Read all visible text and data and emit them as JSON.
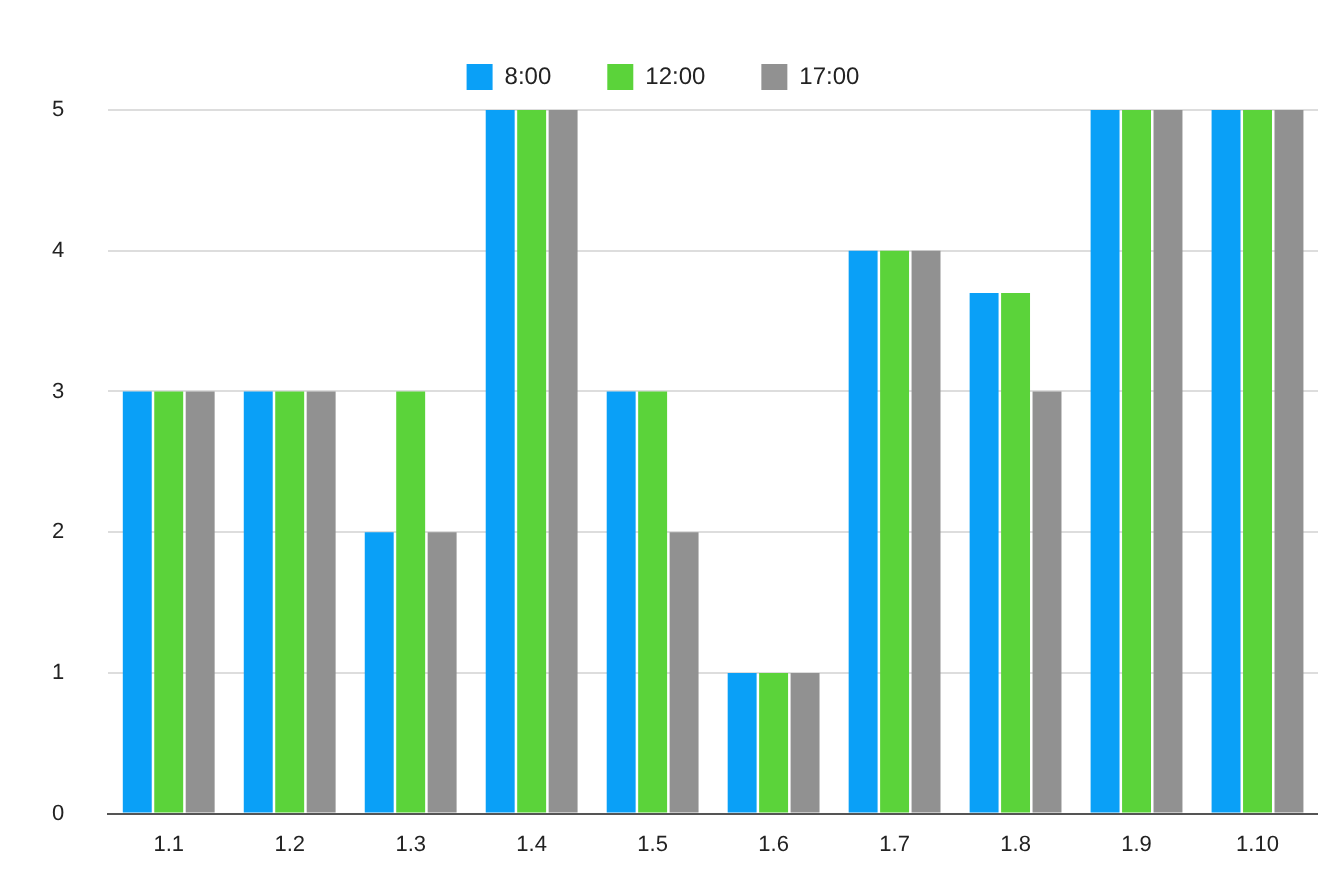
{
  "chart_data": {
    "type": "bar",
    "categories": [
      "1.1",
      "1.2",
      "1.3",
      "1.4",
      "1.5",
      "1.6",
      "1.7",
      "1.8",
      "1.9",
      "1.10"
    ],
    "series": [
      {
        "name": "8:00",
        "color": "#0aa0f7",
        "values": [
          3,
          3,
          2,
          5,
          3,
          1,
          4,
          3.7,
          5,
          5
        ]
      },
      {
        "name": "12:00",
        "color": "#5bd33a",
        "values": [
          3,
          3,
          3,
          5,
          3,
          1,
          4,
          3.7,
          5,
          5
        ]
      },
      {
        "name": "17:00",
        "color": "#919191",
        "values": [
          3,
          3,
          2,
          5,
          2,
          1,
          4,
          3,
          5,
          5
        ]
      }
    ],
    "ylim": [
      0,
      5
    ],
    "yticks": [
      0,
      1,
      2,
      3,
      4,
      5
    ],
    "grid": "y",
    "legend": "top"
  }
}
